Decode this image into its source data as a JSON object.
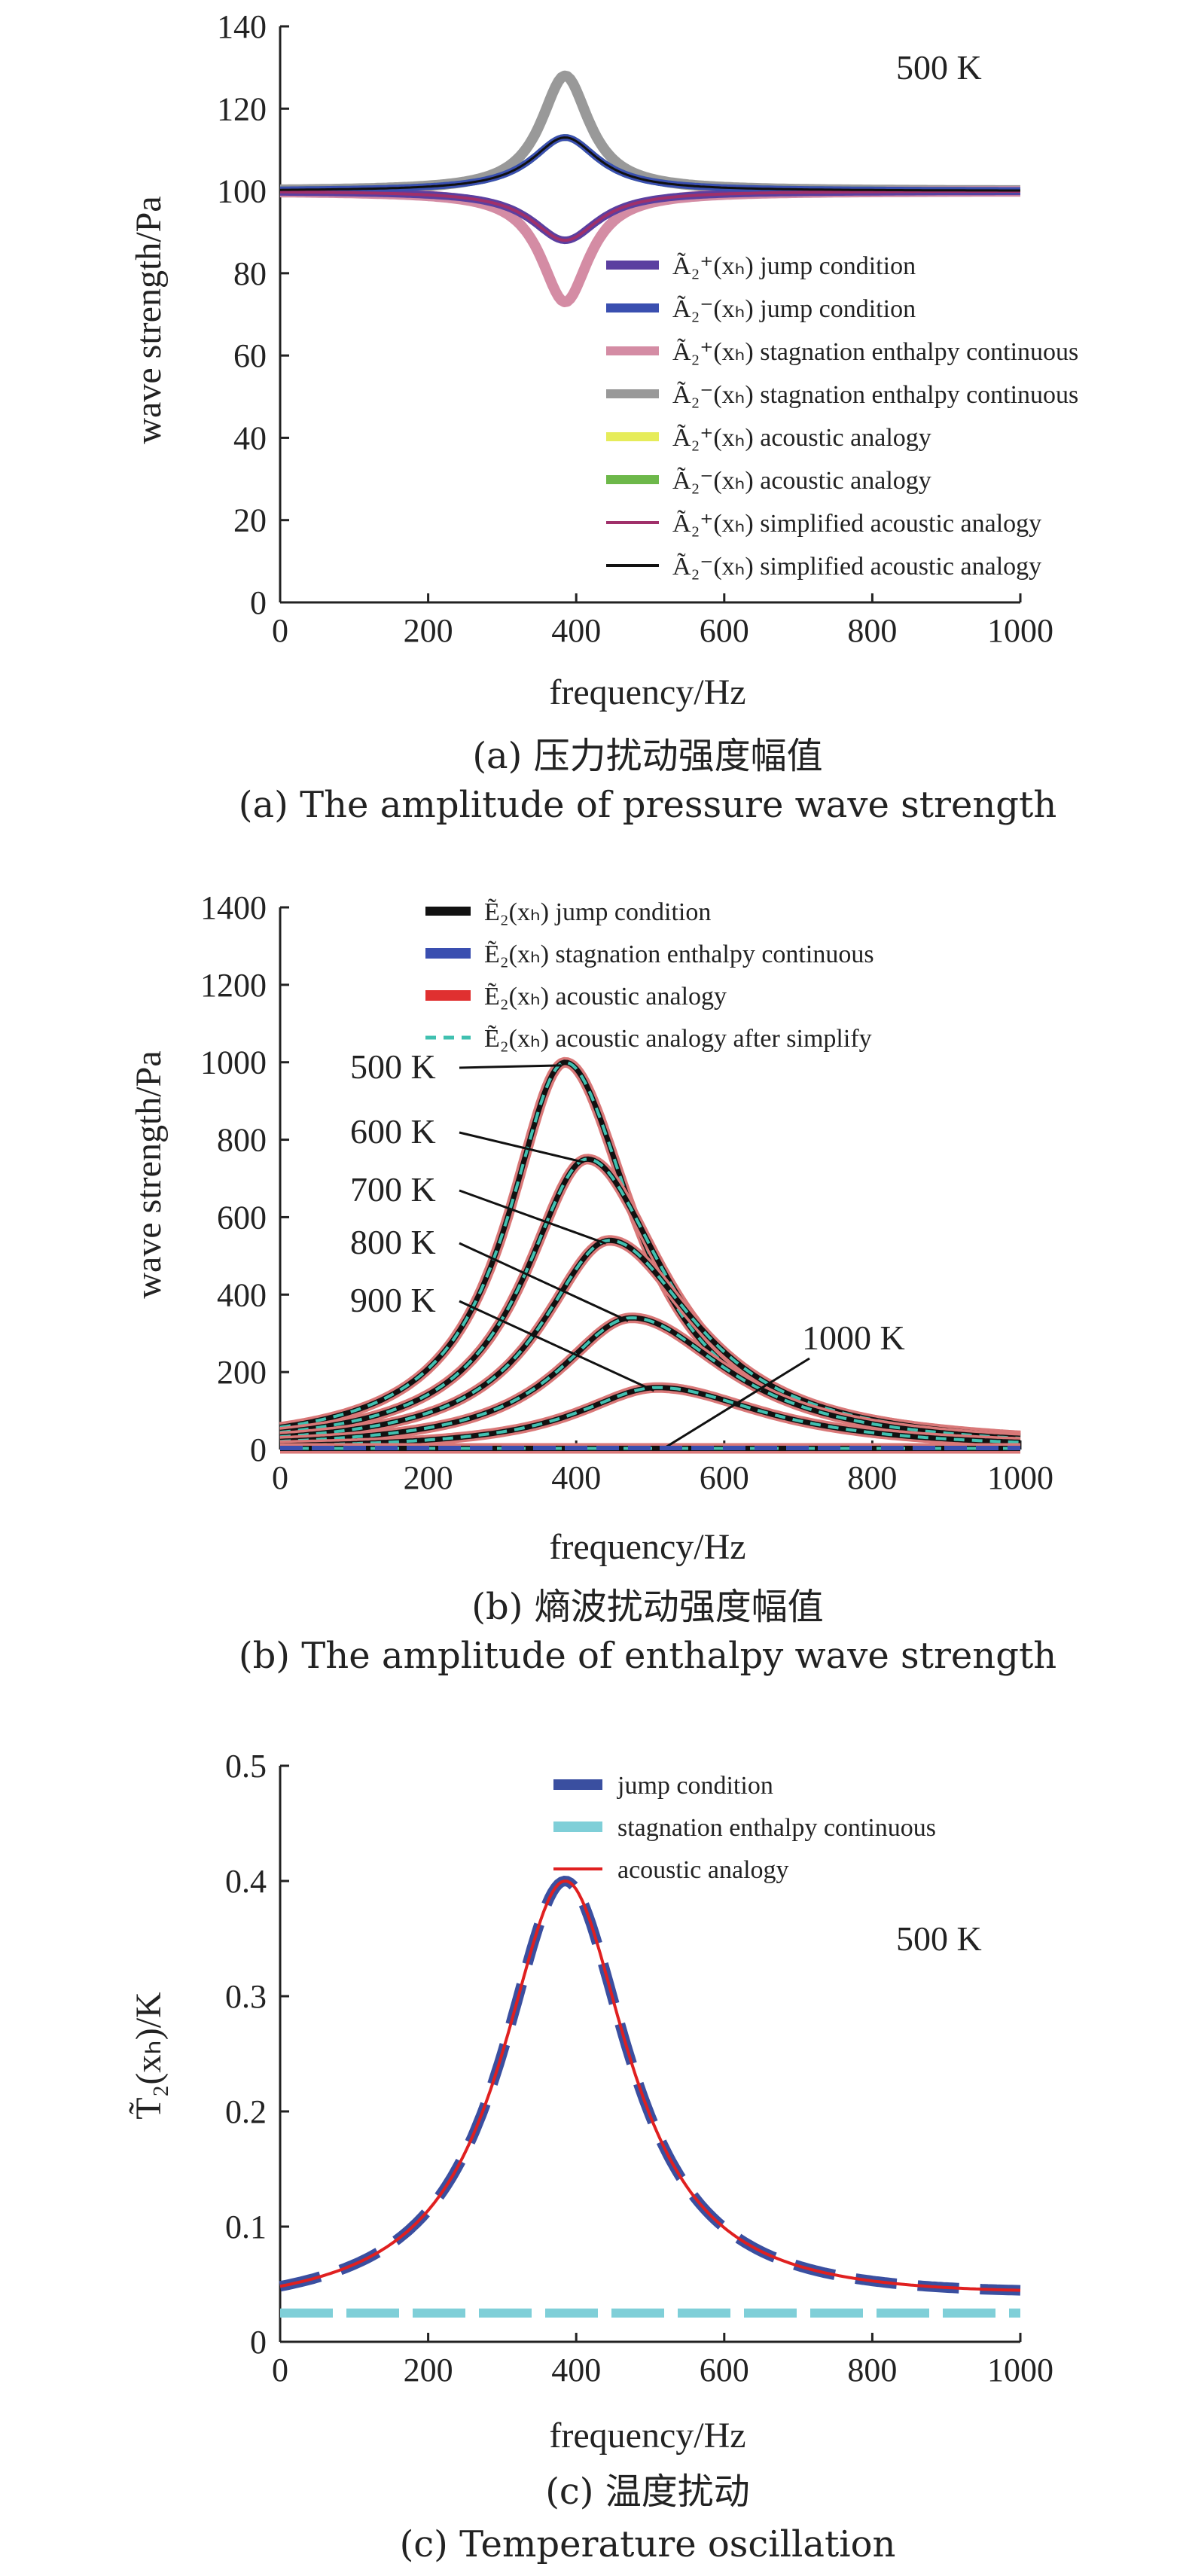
{
  "chart_data": [
    {
      "id": "a",
      "type": "line",
      "xlabel": "frequency/Hz",
      "ylabel": "wave strength/Pa",
      "xlim": [
        0,
        1000
      ],
      "ylim": [
        0,
        140
      ],
      "xticks": [
        0,
        200,
        400,
        600,
        800,
        1000
      ],
      "yticks": [
        0,
        20,
        40,
        60,
        80,
        100,
        120,
        140
      ],
      "annotation": "500 K",
      "legend_position": "bottom-right",
      "caption_cn": "(a) 压力扰动强度幅值",
      "caption_en": "(a) The amplitude of pressure wave strength",
      "series": [
        {
          "name": "Ã₂⁺(xₕ) jump condition",
          "color": "#5b3fa0",
          "peak_x": 385,
          "peak_y": 88
        },
        {
          "name": "Ã₂⁻(xₕ) jump condition",
          "color": "#3a4fb0",
          "peak_x": 385,
          "peak_y": 113
        },
        {
          "name": "Ã₂⁺(xₕ) stagnation enthalpy continuous",
          "color": "#d48ca4",
          "peak_x": 385,
          "peak_y": 73
        },
        {
          "name": "Ã₂⁻(xₕ) stagnation enthalpy continuous",
          "color": "#999999",
          "peak_x": 385,
          "peak_y": 128
        },
        {
          "name": "Ã₂⁺(xₕ) acoustic analogy",
          "color": "#e6ec5a",
          "peak_x": 385,
          "peak_y": 88
        },
        {
          "name": "Ã₂⁻(xₕ) acoustic analogy",
          "color": "#6db84a",
          "peak_x": 385,
          "peak_y": 113
        },
        {
          "name": "Ã₂⁺(xₕ) simplified acoustic analogy",
          "color": "#a0306a",
          "peak_x": 385,
          "peak_y": 88
        },
        {
          "name": "Ã₂⁻(xₕ) simplified acoustic analogy",
          "color": "#111111",
          "peak_x": 385,
          "peak_y": 113
        }
      ]
    },
    {
      "id": "b",
      "type": "line",
      "xlabel": "frequency/Hz",
      "ylabel": "wave strength/Pa",
      "xlim": [
        0,
        1000
      ],
      "ylim": [
        0,
        1400
      ],
      "xticks": [
        0,
        200,
        400,
        600,
        800,
        1000
      ],
      "yticks": [
        0,
        200,
        400,
        600,
        800,
        1000,
        1200,
        1400
      ],
      "legend_position": "top",
      "caption_cn": "(b) 熵波扰动强度幅值",
      "caption_en": "(b) The amplitude of enthalpy wave strength",
      "legend": [
        {
          "name": "Ẽ₂(xₕ) jump condition",
          "color": "#111111"
        },
        {
          "name": "Ẽ₂(xₕ) stagnation enthalpy continuous",
          "color": "#3a4fb0"
        },
        {
          "name": "Ẽ₂(xₕ) acoustic analogy",
          "color": "#e03030"
        },
        {
          "name": "Ẽ₂(xₕ) acoustic analogy after simplify",
          "color": "#40c0b0"
        }
      ],
      "curves": [
        {
          "label": "500 K",
          "peak_x": 385,
          "peak_y": 1000,
          "end_y": 95
        },
        {
          "label": "600 K",
          "peak_x": 415,
          "peak_y": 750,
          "end_y": 85
        },
        {
          "label": "700 K",
          "peak_x": 445,
          "peak_y": 540,
          "end_y": 70
        },
        {
          "label": "800 K",
          "peak_x": 475,
          "peak_y": 340,
          "end_y": 50
        },
        {
          "label": "900 K",
          "peak_x": 510,
          "peak_y": 160,
          "end_y": 25
        },
        {
          "label": "1000 K",
          "peak_x": 540,
          "peak_y": 3,
          "end_y": 3
        }
      ]
    },
    {
      "id": "c",
      "type": "line",
      "xlabel": "frequency/Hz",
      "ylabel": "T̃₂(xₕ)/K",
      "xlim": [
        0,
        1000
      ],
      "ylim": [
        0,
        0.5
      ],
      "xticks": [
        0,
        200,
        400,
        600,
        800,
        1000
      ],
      "yticks": [
        0,
        0.1,
        0.2,
        0.3,
        0.4,
        0.5
      ],
      "annotation": "500 K",
      "legend_position": "top",
      "caption_cn": "(c) 温度扰动",
      "caption_en": "(c) Temperature oscillation",
      "series": [
        {
          "name": "jump condition",
          "color": "#3a4fa0",
          "peak_x": 385,
          "peak_y": 0.4
        },
        {
          "name": "stagnation enthalpy continuous",
          "color": "#7fcfd8",
          "constant_y": 0.025
        },
        {
          "name": "acoustic analogy",
          "color": "#e02020",
          "peak_x": 385,
          "peak_y": 0.4
        }
      ]
    }
  ]
}
